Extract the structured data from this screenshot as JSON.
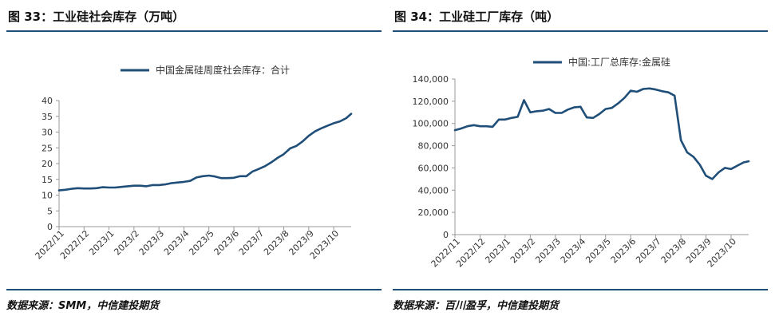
{
  "panels": [
    {
      "figure_title": "图 33：工业硅社会库存（万吨）",
      "source": "数据来源：SMM，中信建投期货"
    },
    {
      "figure_title": "图 34：工业硅工厂库存（吨）",
      "source": "数据来源：百川盈孚，中信建投期货"
    }
  ],
  "chart_data": [
    {
      "type": "line",
      "color": "#1f4e79",
      "title": "",
      "ylim": [
        0,
        40
      ],
      "yticks": [
        0,
        5,
        10,
        15,
        20,
        25,
        30,
        35,
        40
      ],
      "ytick_labels": [
        "0",
        "5",
        "10",
        "15",
        "20",
        "25",
        "30",
        "35",
        "40"
      ],
      "x_range": [
        0,
        11.7
      ],
      "x_tick_positions": [
        0,
        1,
        2,
        3,
        4,
        5,
        6,
        7,
        8,
        9,
        10,
        11
      ],
      "x_tick_labels": [
        "2022/11",
        "2022/12",
        "2023/1",
        "2023/2",
        "2023/3",
        "2023/4",
        "2023/5",
        "2023/6",
        "2023/7",
        "2023/8",
        "2023/9",
        "2023/10"
      ],
      "legend_position": "top-center",
      "series": [
        {
          "name": "中国金属硅周度社会库存：合计",
          "x": [
            0,
            0.25,
            0.5,
            0.75,
            1,
            1.25,
            1.5,
            1.75,
            2,
            2.25,
            2.5,
            2.75,
            3,
            3.25,
            3.5,
            3.75,
            4,
            4.25,
            4.5,
            4.75,
            5,
            5.25,
            5.5,
            5.75,
            6,
            6.25,
            6.5,
            6.75,
            7,
            7.25,
            7.5,
            7.75,
            8,
            8.25,
            8.5,
            8.75,
            9,
            9.25,
            9.5,
            9.75,
            10,
            10.25,
            10.5,
            10.75,
            11,
            11.25,
            11.5,
            11.7
          ],
          "values": [
            11.5,
            11.7,
            12.0,
            12.2,
            12.1,
            12.1,
            12.2,
            12.5,
            12.4,
            12.4,
            12.6,
            12.8,
            13.0,
            13.0,
            12.8,
            13.2,
            13.2,
            13.4,
            13.8,
            14.0,
            14.2,
            14.5,
            15.6,
            16.0,
            16.2,
            15.9,
            15.4,
            15.4,
            15.5,
            16.0,
            16.0,
            17.5,
            18.3,
            19.2,
            20.4,
            21.8,
            23.0,
            24.8,
            25.6,
            27.0,
            28.8,
            30.2,
            31.2,
            32.0,
            32.8,
            33.4,
            34.4,
            35.8
          ]
        }
      ]
    },
    {
      "type": "line",
      "color": "#1f4e79",
      "title": "",
      "ylim": [
        0,
        140000
      ],
      "yticks": [
        0,
        20000,
        40000,
        60000,
        80000,
        100000,
        120000,
        140000
      ],
      "ytick_labels": [
        "0",
        "20,000",
        "40,000",
        "60,000",
        "80,000",
        "100,000",
        "120,000",
        "140,000"
      ],
      "x_range": [
        0,
        11.7
      ],
      "x_tick_positions": [
        0,
        1,
        2,
        3,
        4,
        5,
        6,
        7,
        8,
        9,
        10,
        11
      ],
      "x_tick_labels": [
        "2022/11",
        "2022/12",
        "2023/1",
        "2023/2",
        "2023/3",
        "2023/4",
        "2023/5",
        "2023/6",
        "2023/7",
        "2023/8",
        "2023/9",
        "2023/10"
      ],
      "legend_position": "top-center",
      "series": [
        {
          "name": "中国:工厂总库存:金属硅",
          "x": [
            0,
            0.25,
            0.5,
            0.75,
            1,
            1.25,
            1.5,
            1.75,
            2,
            2.25,
            2.5,
            2.75,
            3,
            3.25,
            3.5,
            3.75,
            4,
            4.25,
            4.5,
            4.75,
            5,
            5.25,
            5.5,
            5.75,
            6,
            6.25,
            6.5,
            6.75,
            7,
            7.25,
            7.5,
            7.75,
            8,
            8.25,
            8.5,
            8.75,
            9,
            9.25,
            9.5,
            9.75,
            10,
            10.25,
            10.5,
            10.75,
            11,
            11.25,
            11.5,
            11.7
          ],
          "values": [
            94000,
            95500,
            97500,
            98500,
            97500,
            97500,
            97000,
            103500,
            103500,
            105000,
            106000,
            121000,
            110000,
            111000,
            111500,
            113000,
            109500,
            109500,
            112500,
            114500,
            115000,
            105500,
            105000,
            108500,
            113000,
            114000,
            118000,
            123000,
            129500,
            128500,
            131000,
            131500,
            130500,
            129000,
            128000,
            125000,
            85000,
            74000,
            70000,
            63000,
            53000,
            50000,
            56000,
            60000,
            59000,
            62000,
            65000,
            66000
          ]
        }
      ]
    }
  ]
}
